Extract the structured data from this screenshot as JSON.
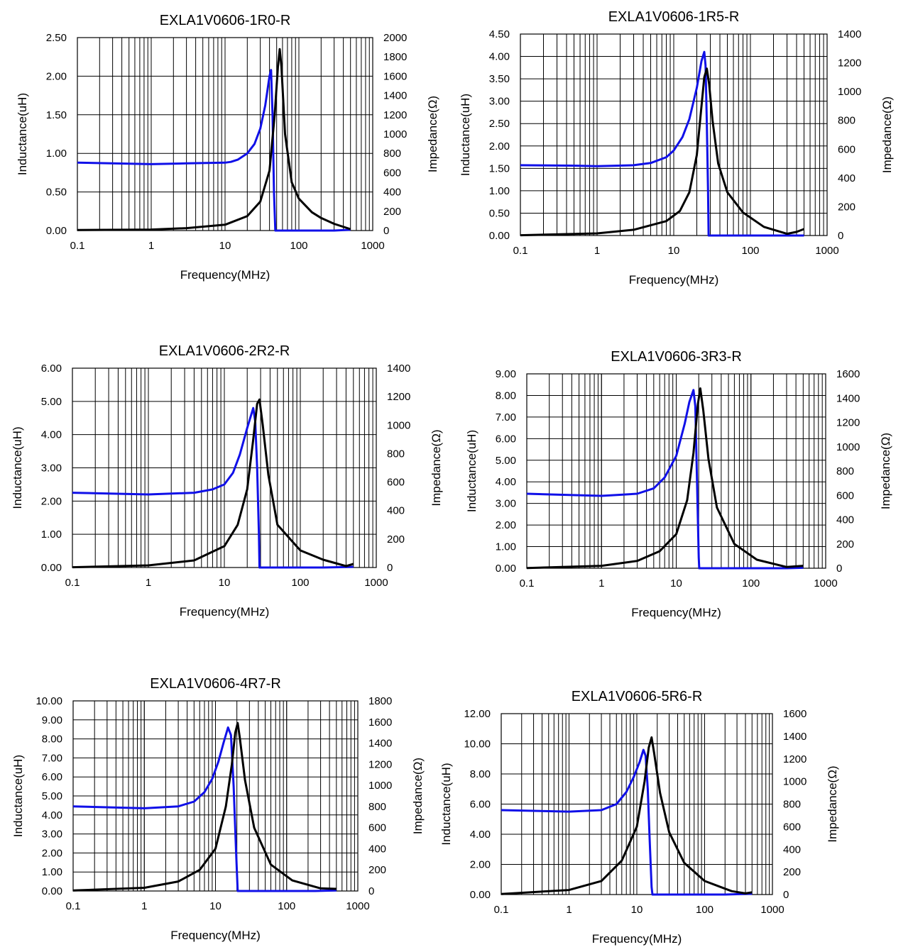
{
  "page": {
    "series_colors": {
      "inductance": "#1010e8",
      "impedance": "#000000"
    }
  },
  "chart_data": [
    {
      "type": "line",
      "title": "EXLA1V0606-1R0-R",
      "xlabel": "Frequency(MHz)",
      "ylabel_left": "Inductance(uH)",
      "ylabel_right": "Impedance(Ω)",
      "x_scale": "log",
      "xlim": [
        0.1,
        1000
      ],
      "x_ticks": [
        "0.1",
        "1",
        "10",
        "100",
        "1000"
      ],
      "ylim_left": [
        0,
        2.5
      ],
      "yticks_left": [
        "0.00",
        "0.50",
        "1.00",
        "1.50",
        "2.00",
        "2.50"
      ],
      "ylim_right": [
        0,
        2000
      ],
      "yticks_right": [
        "0",
        "200",
        "400",
        "600",
        "800",
        "1000",
        "1200",
        "1400",
        "1600",
        "1800",
        "2000"
      ],
      "series": [
        {
          "axis": "left",
          "color": "#1010e8",
          "points": [
            [
              0.1,
              0.88
            ],
            [
              0.3,
              0.87
            ],
            [
              1,
              0.86
            ],
            [
              3,
              0.87
            ],
            [
              10,
              0.88
            ],
            [
              12,
              0.89
            ],
            [
              15,
              0.92
            ],
            [
              20,
              1.0
            ],
            [
              25,
              1.12
            ],
            [
              30,
              1.32
            ],
            [
              35,
              1.62
            ],
            [
              40,
              2.0
            ],
            [
              42,
              2.08
            ],
            [
              44,
              1.5
            ],
            [
              46,
              0.5
            ],
            [
              48,
              0.0
            ],
            [
              300,
              0.0
            ],
            [
              500,
              0.01
            ]
          ]
        },
        {
          "axis": "right",
          "color": "#000000",
          "points": [
            [
              0.1,
              5
            ],
            [
              1,
              10
            ],
            [
              3,
              25
            ],
            [
              10,
              60
            ],
            [
              20,
              150
            ],
            [
              30,
              300
            ],
            [
              40,
              620
            ],
            [
              47,
              1200
            ],
            [
              52,
              1700
            ],
            [
              55,
              1880
            ],
            [
              58,
              1700
            ],
            [
              65,
              1000
            ],
            [
              80,
              500
            ],
            [
              100,
              330
            ],
            [
              150,
              190
            ],
            [
              200,
              130
            ],
            [
              300,
              70
            ],
            [
              500,
              15
            ]
          ]
        }
      ]
    },
    {
      "type": "line",
      "title": "EXLA1V0606-1R5-R",
      "xlabel": "Frequency(MHz)",
      "ylabel_left": "Inductance(uH)",
      "ylabel_right": "Impedance(Ω)",
      "x_scale": "log",
      "xlim": [
        0.1,
        1000
      ],
      "x_ticks": [
        "0.1",
        "1",
        "10",
        "100",
        "1000"
      ],
      "ylim_left": [
        0,
        4.5
      ],
      "yticks_left": [
        "0.00",
        "0.50",
        "1.00",
        "1.50",
        "2.00",
        "2.50",
        "3.00",
        "3.50",
        "4.00",
        "4.50"
      ],
      "ylim_right": [
        0,
        1400
      ],
      "yticks_right": [
        "0",
        "200",
        "400",
        "600",
        "800",
        "1000",
        "1200",
        "1400"
      ],
      "series": [
        {
          "axis": "left",
          "color": "#1010e8",
          "points": [
            [
              0.1,
              1.57
            ],
            [
              0.5,
              1.56
            ],
            [
              1,
              1.55
            ],
            [
              3,
              1.57
            ],
            [
              5,
              1.62
            ],
            [
              8,
              1.75
            ],
            [
              10,
              1.9
            ],
            [
              13,
              2.2
            ],
            [
              16,
              2.6
            ],
            [
              20,
              3.3
            ],
            [
              23,
              3.9
            ],
            [
              25,
              4.1
            ],
            [
              26,
              3.8
            ],
            [
              27,
              2.5
            ],
            [
              28,
              1.0
            ],
            [
              28.5,
              0.0
            ],
            [
              500,
              0.0
            ]
          ]
        },
        {
          "axis": "right",
          "color": "#000000",
          "points": [
            [
              0.1,
              2
            ],
            [
              1,
              15
            ],
            [
              3,
              40
            ],
            [
              8,
              100
            ],
            [
              12,
              170
            ],
            [
              16,
              300
            ],
            [
              20,
              560
            ],
            [
              23,
              900
            ],
            [
              25,
              1100
            ],
            [
              27,
              1160
            ],
            [
              29,
              1050
            ],
            [
              32,
              800
            ],
            [
              38,
              500
            ],
            [
              50,
              300
            ],
            [
              80,
              160
            ],
            [
              150,
              60
            ],
            [
              300,
              12
            ],
            [
              400,
              25
            ],
            [
              500,
              45
            ]
          ]
        }
      ]
    },
    {
      "type": "line",
      "title": "EXLA1V0606-2R2-R",
      "xlabel": "Frequency(MHz)",
      "ylabel_left": "Inductance(uH)",
      "ylabel_right": "Impedance(Ω)",
      "x_scale": "log",
      "xlim": [
        0.1,
        1000
      ],
      "x_ticks": [
        "0.1",
        "1",
        "10",
        "100",
        "1000"
      ],
      "ylim_left": [
        0,
        6
      ],
      "yticks_left": [
        "0.00",
        "1.00",
        "2.00",
        "3.00",
        "4.00",
        "5.00",
        "6.00"
      ],
      "ylim_right": [
        0,
        1400
      ],
      "yticks_right": [
        "0",
        "200",
        "400",
        "600",
        "800",
        "1000",
        "1200",
        "1400"
      ],
      "series": [
        {
          "axis": "left",
          "color": "#1010e8",
          "points": [
            [
              0.1,
              2.25
            ],
            [
              1,
              2.2
            ],
            [
              4,
              2.25
            ],
            [
              7,
              2.35
            ],
            [
              10,
              2.5
            ],
            [
              13,
              2.85
            ],
            [
              16,
              3.4
            ],
            [
              20,
              4.2
            ],
            [
              24,
              4.8
            ],
            [
              25.5,
              4.4
            ],
            [
              27,
              3.0
            ],
            [
              28.5,
              1.0
            ],
            [
              29,
              0.0
            ],
            [
              200,
              0.0
            ],
            [
              500,
              0.02
            ]
          ]
        },
        {
          "axis": "right",
          "color": "#000000",
          "points": [
            [
              0.1,
              2
            ],
            [
              1,
              15
            ],
            [
              4,
              50
            ],
            [
              10,
              150
            ],
            [
              15,
              300
            ],
            [
              20,
              550
            ],
            [
              24,
              900
            ],
            [
              27,
              1150
            ],
            [
              29,
              1180
            ],
            [
              32,
              1000
            ],
            [
              38,
              650
            ],
            [
              50,
              300
            ],
            [
              100,
              120
            ],
            [
              200,
              55
            ],
            [
              400,
              10
            ],
            [
              500,
              25
            ]
          ]
        }
      ]
    },
    {
      "type": "line",
      "title": "EXLA1V0606-3R3-R",
      "xlabel": "Frequency(MHz)",
      "ylabel_left": "Inductance(uH)",
      "ylabel_right": "Impedance(Ω)",
      "x_scale": "log",
      "xlim": [
        0.1,
        1000
      ],
      "x_ticks": [
        "0.1",
        "1",
        "10",
        "100",
        "1000"
      ],
      "ylim_left": [
        0,
        9
      ],
      "yticks_left": [
        "0.00",
        "1.00",
        "2.00",
        "3.00",
        "4.00",
        "5.00",
        "6.00",
        "7.00",
        "8.00",
        "9.00"
      ],
      "ylim_right": [
        0,
        1600
      ],
      "yticks_right": [
        "0",
        "200",
        "400",
        "600",
        "800",
        "1000",
        "1200",
        "1400",
        "1600"
      ],
      "series": [
        {
          "axis": "left",
          "color": "#1010e8",
          "points": [
            [
              0.1,
              3.45
            ],
            [
              1,
              3.35
            ],
            [
              3,
              3.45
            ],
            [
              5,
              3.7
            ],
            [
              7,
              4.2
            ],
            [
              10,
              5.2
            ],
            [
              13,
              6.7
            ],
            [
              15,
              7.7
            ],
            [
              17,
              8.25
            ],
            [
              18,
              7.5
            ],
            [
              19,
              4.0
            ],
            [
              20,
              0.5
            ],
            [
              20.3,
              0.0
            ],
            [
              300,
              0.0
            ],
            [
              500,
              0.02
            ]
          ]
        },
        {
          "axis": "right",
          "color": "#000000",
          "points": [
            [
              0.1,
              2
            ],
            [
              1,
              20
            ],
            [
              3,
              60
            ],
            [
              6,
              140
            ],
            [
              10,
              280
            ],
            [
              14,
              560
            ],
            [
              17,
              950
            ],
            [
              19.5,
              1350
            ],
            [
              21,
              1480
            ],
            [
              23,
              1300
            ],
            [
              27,
              900
            ],
            [
              35,
              500
            ],
            [
              60,
              200
            ],
            [
              120,
              70
            ],
            [
              300,
              10
            ],
            [
              500,
              20
            ]
          ]
        }
      ]
    },
    {
      "type": "line",
      "title": "EXLA1V0606-4R7-R",
      "xlabel": "Frequency(MHz)",
      "ylabel_left": "Inductance(uH)",
      "ylabel_right": "Impedance(Ω)",
      "x_scale": "log",
      "xlim": [
        0.1,
        1000
      ],
      "x_ticks": [
        "0.1",
        "1",
        "10",
        "100",
        "1000"
      ],
      "ylim_left": [
        0,
        10
      ],
      "yticks_left": [
        "0.00",
        "1.00",
        "2.00",
        "3.00",
        "4.00",
        "5.00",
        "6.00",
        "7.00",
        "8.00",
        "9.00",
        "10.00"
      ],
      "ylim_right": [
        0,
        1800
      ],
      "yticks_right": [
        "0",
        "200",
        "400",
        "600",
        "800",
        "1000",
        "1200",
        "1400",
        "1600",
        "1800"
      ],
      "series": [
        {
          "axis": "left",
          "color": "#1010e8",
          "points": [
            [
              0.1,
              4.45
            ],
            [
              1,
              4.35
            ],
            [
              3,
              4.45
            ],
            [
              5,
              4.7
            ],
            [
              7,
              5.2
            ],
            [
              9,
              5.9
            ],
            [
              11,
              6.8
            ],
            [
              13,
              7.8
            ],
            [
              15,
              8.6
            ],
            [
              16.5,
              8.2
            ],
            [
              18,
              5.5
            ],
            [
              19.5,
              2.0
            ],
            [
              20.5,
              0.0
            ],
            [
              250,
              0.0
            ],
            [
              500,
              0.03
            ]
          ]
        },
        {
          "axis": "right",
          "color": "#000000",
          "points": [
            [
              0.1,
              5
            ],
            [
              1,
              30
            ],
            [
              3,
              90
            ],
            [
              6,
              200
            ],
            [
              10,
              400
            ],
            [
              14,
              800
            ],
            [
              17,
              1200
            ],
            [
              19,
              1500
            ],
            [
              20.5,
              1590
            ],
            [
              22,
              1450
            ],
            [
              26,
              1050
            ],
            [
              35,
              600
            ],
            [
              60,
              250
            ],
            [
              120,
              100
            ],
            [
              300,
              25
            ],
            [
              500,
              20
            ]
          ]
        }
      ]
    },
    {
      "type": "line",
      "title": "EXLA1V0606-5R6-R",
      "xlabel": "Frequency(MHz)",
      "ylabel_left": "Inductance(uH)",
      "ylabel_right": "Impedance(Ω)",
      "x_scale": "log",
      "xlim": [
        0.1,
        1000
      ],
      "x_ticks": [
        "0.1",
        "1",
        "10",
        "100",
        "1000"
      ],
      "ylim_left": [
        0,
        12
      ],
      "yticks_left": [
        "0.00",
        "2.00",
        "4.00",
        "6.00",
        "8.00",
        "10.00",
        "12.00"
      ],
      "ylim_right": [
        0,
        1600
      ],
      "yticks_right": [
        "0",
        "200",
        "400",
        "600",
        "800",
        "1000",
        "1200",
        "1400",
        "1600"
      ],
      "series": [
        {
          "axis": "left",
          "color": "#1010e8",
          "points": [
            [
              0.1,
              5.6
            ],
            [
              1,
              5.5
            ],
            [
              3,
              5.6
            ],
            [
              5,
              6.0
            ],
            [
              7,
              6.8
            ],
            [
              9,
              7.8
            ],
            [
              11,
              8.8
            ],
            [
              12.5,
              9.6
            ],
            [
              13.5,
              9.2
            ],
            [
              14.5,
              7.0
            ],
            [
              15.5,
              3.5
            ],
            [
              16.5,
              0.5
            ],
            [
              17,
              0.0
            ],
            [
              200,
              0.0
            ],
            [
              500,
              0.05
            ]
          ]
        },
        {
          "axis": "right",
          "color": "#000000",
          "points": [
            [
              0.1,
              5
            ],
            [
              1,
              40
            ],
            [
              3,
              120
            ],
            [
              6,
              300
            ],
            [
              10,
              600
            ],
            [
              13,
              1000
            ],
            [
              15,
              1300
            ],
            [
              16.5,
              1390
            ],
            [
              18,
              1250
            ],
            [
              22,
              900
            ],
            [
              30,
              550
            ],
            [
              50,
              280
            ],
            [
              100,
              120
            ],
            [
              250,
              30
            ],
            [
              400,
              10
            ],
            [
              500,
              20
            ]
          ]
        }
      ]
    }
  ]
}
